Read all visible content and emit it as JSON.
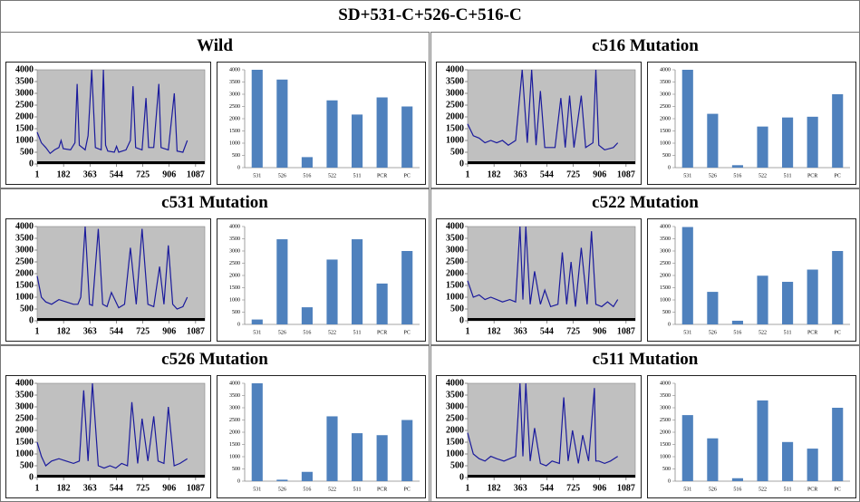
{
  "title": "SD+531-C+526-C+516-C",
  "panels": [
    {
      "title": "Wild",
      "chart_data": [
        {
          "type": "line",
          "color": "#1a1a9c",
          "plot_background": "#c0c0c0",
          "x": [
            1,
            30,
            60,
            90,
            120,
            150,
            165,
            180,
            230,
            260,
            275,
            290,
            330,
            350,
            375,
            400,
            440,
            455,
            470,
            485,
            530,
            545,
            560,
            610,
            640,
            658,
            676,
            720,
            747,
            765,
            800,
            835,
            850,
            900,
            941,
            960,
            1000,
            1030
          ],
          "values": [
            1350,
            900,
            700,
            450,
            600,
            700,
            1000,
            650,
            600,
            900,
            3400,
            800,
            600,
            1200,
            4000,
            700,
            600,
            4000,
            800,
            550,
            500,
            750,
            500,
            600,
            1000,
            3300,
            700,
            600,
            2800,
            700,
            700,
            3400,
            700,
            600,
            3000,
            550,
            500,
            1000
          ],
          "xlim": [
            1,
            1150
          ],
          "xticks": [
            1,
            182,
            363,
            544,
            725,
            906,
            1087
          ],
          "ylim": [
            0,
            4000
          ],
          "yticks": [
            0,
            500,
            1000,
            1500,
            2000,
            2500,
            3000,
            3500,
            4000
          ]
        },
        {
          "type": "bar",
          "color": "#4f81bd",
          "categories": [
            "531",
            "526",
            "516",
            "522",
            "511",
            "PCR",
            "PC"
          ],
          "values": [
            4000,
            3600,
            430,
            2750,
            2170,
            2870,
            2500
          ],
          "ylim": [
            0,
            4000
          ],
          "yticks": [
            0,
            500,
            1000,
            1500,
            2000,
            2500,
            3000,
            3500,
            4000
          ]
        }
      ]
    },
    {
      "title": "c516 Mutation",
      "chart_data": [
        {
          "type": "line",
          "color": "#1a1a9c",
          "plot_background": "#c0c0c0",
          "x": [
            1,
            40,
            80,
            120,
            160,
            200,
            240,
            280,
            330,
            375,
            410,
            440,
            470,
            500,
            530,
            600,
            640,
            670,
            700,
            730,
            780,
            810,
            860,
            880,
            900,
            940,
            1000,
            1030
          ],
          "values": [
            1700,
            1200,
            1100,
            900,
            1000,
            900,
            1000,
            800,
            1000,
            4000,
            900,
            4000,
            800,
            3100,
            700,
            700,
            2800,
            700,
            2900,
            700,
            2900,
            700,
            900,
            4000,
            800,
            600,
            700,
            900
          ],
          "xlim": [
            1,
            1150
          ],
          "xticks": [
            1,
            182,
            363,
            544,
            725,
            906,
            1087
          ],
          "ylim": [
            0,
            4000
          ],
          "yticks": [
            0,
            500,
            1000,
            1500,
            2000,
            2500,
            3000,
            3500,
            4000
          ]
        },
        {
          "type": "bar",
          "color": "#4f81bd",
          "categories": [
            "531",
            "526",
            "516",
            "522",
            "511",
            "PCR",
            "PC"
          ],
          "values": [
            4000,
            2200,
            100,
            1680,
            2050,
            2080,
            3000
          ],
          "ylim": [
            0,
            4000
          ],
          "yticks": [
            0,
            500,
            1000,
            1500,
            2000,
            2500,
            3000,
            3500,
            4000
          ]
        }
      ]
    },
    {
      "title": "c531 Mutation",
      "chart_data": [
        {
          "type": "line",
          "color": "#1a1a9c",
          "plot_background": "#c0c0c0",
          "x": [
            1,
            30,
            60,
            100,
            150,
            200,
            250,
            280,
            300,
            330,
            360,
            380,
            420,
            450,
            480,
            510,
            560,
            600,
            640,
            680,
            720,
            760,
            800,
            840,
            870,
            900,
            930,
            960,
            1000,
            1030
          ],
          "values": [
            1900,
            1000,
            800,
            700,
            900,
            800,
            700,
            700,
            1000,
            4000,
            700,
            650,
            3900,
            700,
            600,
            1200,
            550,
            700,
            3100,
            700,
            3900,
            700,
            600,
            2300,
            700,
            3200,
            700,
            500,
            600,
            1000
          ],
          "xlim": [
            1,
            1150
          ],
          "xticks": [
            1,
            182,
            363,
            544,
            725,
            906,
            1087
          ],
          "ylim": [
            0,
            4000
          ],
          "yticks": [
            0,
            500,
            1000,
            1500,
            2000,
            2500,
            3000,
            3500,
            4000
          ]
        },
        {
          "type": "bar",
          "color": "#4f81bd",
          "categories": [
            "531",
            "526",
            "516",
            "522",
            "511",
            "PCR",
            "PC"
          ],
          "values": [
            200,
            3480,
            700,
            2650,
            3480,
            1670,
            3000
          ],
          "ylim": [
            0,
            4000
          ],
          "yticks": [
            0,
            500,
            1000,
            1500,
            2000,
            2500,
            3000,
            3500,
            4000
          ]
        }
      ]
    },
    {
      "title": "c522 Mutation",
      "chart_data": [
        {
          "type": "line",
          "color": "#1a1a9c",
          "plot_background": "#c0c0c0",
          "x": [
            1,
            40,
            80,
            120,
            160,
            200,
            240,
            290,
            330,
            360,
            380,
            400,
            430,
            460,
            500,
            530,
            570,
            620,
            650,
            680,
            710,
            740,
            780,
            820,
            850,
            880,
            920,
            960,
            1000,
            1030
          ],
          "values": [
            1700,
            1000,
            1100,
            900,
            1000,
            900,
            800,
            900,
            800,
            4000,
            900,
            4000,
            700,
            2100,
            700,
            1300,
            600,
            700,
            2900,
            700,
            2500,
            600,
            3100,
            700,
            3800,
            700,
            600,
            800,
            600,
            900
          ],
          "xlim": [
            1,
            1150
          ],
          "xticks": [
            1,
            182,
            363,
            544,
            725,
            906,
            1087
          ],
          "ylim": [
            0,
            4000
          ],
          "yticks": [
            0,
            500,
            1000,
            1500,
            2000,
            2500,
            3000,
            3500,
            4000
          ]
        },
        {
          "type": "bar",
          "color": "#4f81bd",
          "categories": [
            "531",
            "526",
            "516",
            "522",
            "511",
            "PCR",
            "PC"
          ],
          "values": [
            3980,
            1330,
            150,
            1990,
            1740,
            2240,
            3000
          ],
          "ylim": [
            0,
            4000
          ],
          "yticks": [
            0,
            500,
            1000,
            1500,
            2000,
            2500,
            3000,
            3500,
            4000
          ]
        }
      ]
    },
    {
      "title": "c526 Mutation",
      "chart_data": [
        {
          "type": "line",
          "color": "#1a1a9c",
          "plot_background": "#c0c0c0",
          "x": [
            1,
            30,
            60,
            100,
            150,
            200,
            250,
            290,
            320,
            350,
            380,
            420,
            460,
            500,
            540,
            580,
            620,
            650,
            690,
            720,
            760,
            800,
            830,
            870,
            900,
            940,
            980,
            1030
          ],
          "values": [
            1500,
            900,
            500,
            700,
            800,
            700,
            600,
            700,
            3700,
            700,
            4000,
            500,
            400,
            500,
            400,
            600,
            500,
            3200,
            600,
            2500,
            700,
            2600,
            700,
            600,
            3000,
            500,
            600,
            800
          ],
          "xlim": [
            1,
            1150
          ],
          "xticks": [
            1,
            182,
            363,
            544,
            725,
            906,
            1087
          ],
          "ylim": [
            0,
            4000
          ],
          "yticks": [
            0,
            500,
            1000,
            1500,
            2000,
            2500,
            3000,
            3500,
            4000
          ]
        },
        {
          "type": "bar",
          "color": "#4f81bd",
          "categories": [
            "531",
            "526",
            "516",
            "522",
            "511",
            "PCR",
            "PC"
          ],
          "values": [
            4000,
            60,
            380,
            2650,
            1960,
            1880,
            2500
          ],
          "ylim": [
            0,
            4000
          ],
          "yticks": [
            0,
            500,
            1000,
            1500,
            2000,
            2500,
            3000,
            3500,
            4000
          ]
        }
      ]
    },
    {
      "title": "c511 Mutation",
      "chart_data": [
        {
          "type": "line",
          "color": "#1a1a9c",
          "plot_background": "#c0c0c0",
          "x": [
            1,
            40,
            80,
            120,
            160,
            200,
            250,
            290,
            330,
            360,
            380,
            400,
            430,
            460,
            500,
            540,
            580,
            630,
            660,
            690,
            720,
            760,
            790,
            830,
            870,
            880,
            900,
            940,
            980,
            1030
          ],
          "values": [
            1900,
            1000,
            800,
            700,
            900,
            800,
            700,
            800,
            900,
            4000,
            900,
            4000,
            700,
            2100,
            600,
            500,
            700,
            600,
            3400,
            700,
            2000,
            600,
            1800,
            700,
            3800,
            700,
            700,
            600,
            700,
            900
          ],
          "xlim": [
            1,
            1150
          ],
          "xticks": [
            1,
            182,
            363,
            544,
            725,
            906,
            1087
          ],
          "ylim": [
            0,
            4000
          ],
          "yticks": [
            0,
            500,
            1000,
            1500,
            2000,
            2500,
            3000,
            3500,
            4000
          ]
        },
        {
          "type": "bar",
          "color": "#4f81bd",
          "categories": [
            "531",
            "526",
            "516",
            "522",
            "511",
            "PCR",
            "PC"
          ],
          "values": [
            2700,
            1750,
            120,
            3300,
            1600,
            1330,
            3000
          ],
          "ylim": [
            0,
            4000
          ],
          "yticks": [
            0,
            500,
            1000,
            1500,
            2000,
            2500,
            3000,
            3500,
            4000
          ]
        }
      ]
    }
  ]
}
